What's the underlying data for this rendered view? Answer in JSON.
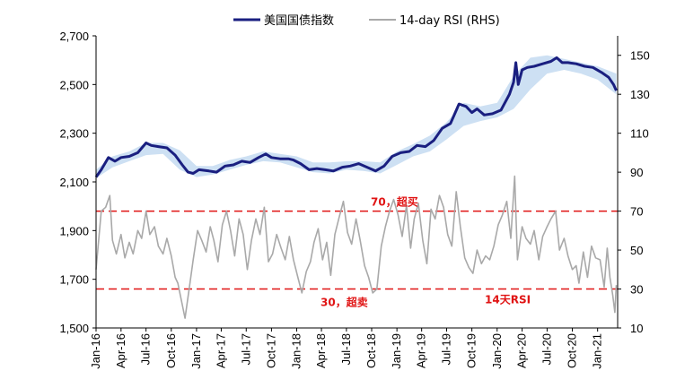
{
  "chart_data": {
    "type": "line",
    "title": "",
    "legend": {
      "position": "top-center"
    },
    "x_ticks": [
      "Jan-16",
      "Apr-16",
      "Jul-16",
      "Oct-16",
      "Jan-17",
      "Apr-17",
      "Jul-17",
      "Oct-17",
      "Jan-18",
      "Apr-18",
      "Jul-18",
      "Oct-18",
      "Jan-19",
      "Apr-19",
      "Jul-19",
      "Oct-19",
      "Jan-20",
      "Apr-20",
      "Jul-20",
      "Oct-20",
      "Jan-21"
    ],
    "y_left": {
      "ticks": [
        "1,500",
        "1,700",
        "1,900",
        "2,100",
        "2,300",
        "2,500",
        "2,700"
      ],
      "range": [
        1500,
        2700
      ]
    },
    "y_right": {
      "ticks": [
        "10",
        "30",
        "50",
        "70",
        "90",
        "110",
        "130",
        "150"
      ],
      "range": [
        10,
        160
      ]
    },
    "series": [
      {
        "name": "美国国债指数",
        "axis": "left",
        "color": "#1a1f80",
        "points": [
          [
            "2016-01-01",
            2120
          ],
          [
            "2016-01-20",
            2150
          ],
          [
            "2016-02-15",
            2200
          ],
          [
            "2016-03-10",
            2185
          ],
          [
            "2016-04-01",
            2200
          ],
          [
            "2016-05-01",
            2205
          ],
          [
            "2016-06-01",
            2220
          ],
          [
            "2016-07-01",
            2260
          ],
          [
            "2016-07-20",
            2250
          ],
          [
            "2016-08-15",
            2245
          ],
          [
            "2016-09-15",
            2240
          ],
          [
            "2016-10-15",
            2210
          ],
          [
            "2016-11-10",
            2170
          ],
          [
            "2016-12-01",
            2140
          ],
          [
            "2016-12-20",
            2135
          ],
          [
            "2017-01-10",
            2150
          ],
          [
            "2017-02-15",
            2145
          ],
          [
            "2017-03-15",
            2140
          ],
          [
            "2017-04-15",
            2165
          ],
          [
            "2017-05-15",
            2170
          ],
          [
            "2017-06-15",
            2185
          ],
          [
            "2017-07-15",
            2180
          ],
          [
            "2017-08-15",
            2200
          ],
          [
            "2017-09-10",
            2215
          ],
          [
            "2017-10-01",
            2200
          ],
          [
            "2017-11-01",
            2195
          ],
          [
            "2017-12-01",
            2195
          ],
          [
            "2017-12-20",
            2190
          ],
          [
            "2018-01-15",
            2175
          ],
          [
            "2018-02-15",
            2150
          ],
          [
            "2018-03-15",
            2155
          ],
          [
            "2018-04-15",
            2150
          ],
          [
            "2018-05-15",
            2145
          ],
          [
            "2018-06-15",
            2160
          ],
          [
            "2018-07-15",
            2165
          ],
          [
            "2018-08-15",
            2175
          ],
          [
            "2018-09-15",
            2160
          ],
          [
            "2018-10-15",
            2145
          ],
          [
            "2018-11-15",
            2165
          ],
          [
            "2018-12-15",
            2205
          ],
          [
            "2019-01-15",
            2220
          ],
          [
            "2019-02-15",
            2225
          ],
          [
            "2019-03-15",
            2250
          ],
          [
            "2019-04-15",
            2245
          ],
          [
            "2019-05-15",
            2270
          ],
          [
            "2019-06-15",
            2320
          ],
          [
            "2019-07-15",
            2340
          ],
          [
            "2019-08-15",
            2420
          ],
          [
            "2019-09-10",
            2410
          ],
          [
            "2019-10-01",
            2385
          ],
          [
            "2019-10-20",
            2400
          ],
          [
            "2019-11-15",
            2375
          ],
          [
            "2019-12-15",
            2380
          ],
          [
            "2020-01-15",
            2395
          ],
          [
            "2020-02-15",
            2460
          ],
          [
            "2020-03-01",
            2510
          ],
          [
            "2020-03-09",
            2590
          ],
          [
            "2020-03-18",
            2500
          ],
          [
            "2020-04-01",
            2560
          ],
          [
            "2020-04-20",
            2570
          ],
          [
            "2020-05-15",
            2575
          ],
          [
            "2020-06-15",
            2585
          ],
          [
            "2020-07-15",
            2595
          ],
          [
            "2020-08-05",
            2610
          ],
          [
            "2020-08-25",
            2590
          ],
          [
            "2020-09-15",
            2590
          ],
          [
            "2020-10-15",
            2585
          ],
          [
            "2020-11-15",
            2575
          ],
          [
            "2020-12-15",
            2570
          ],
          [
            "2021-01-15",
            2550
          ],
          [
            "2021-02-10",
            2530
          ],
          [
            "2021-02-28",
            2500
          ],
          [
            "2021-03-10",
            2475
          ]
        ]
      },
      {
        "name": "14-day RSI (RHS)",
        "axis": "right",
        "color": "#a9a9a9",
        "points": [
          [
            "2016-01-01",
            40
          ],
          [
            "2016-01-20",
            70
          ],
          [
            "2016-02-05",
            72
          ],
          [
            "2016-02-20",
            78
          ],
          [
            "2016-03-01",
            55
          ],
          [
            "2016-03-15",
            48
          ],
          [
            "2016-04-01",
            58
          ],
          [
            "2016-04-15",
            46
          ],
          [
            "2016-05-01",
            54
          ],
          [
            "2016-05-15",
            48
          ],
          [
            "2016-06-01",
            60
          ],
          [
            "2016-06-15",
            56
          ],
          [
            "2016-07-01",
            70
          ],
          [
            "2016-07-15",
            58
          ],
          [
            "2016-08-01",
            62
          ],
          [
            "2016-08-15",
            52
          ],
          [
            "2016-09-01",
            48
          ],
          [
            "2016-09-15",
            56
          ],
          [
            "2016-10-01",
            47
          ],
          [
            "2016-10-15",
            36
          ],
          [
            "2016-10-25",
            33
          ],
          [
            "2016-11-10",
            22
          ],
          [
            "2016-11-20",
            15
          ],
          [
            "2016-12-05",
            30
          ],
          [
            "2016-12-20",
            45
          ],
          [
            "2017-01-05",
            60
          ],
          [
            "2017-01-20",
            55
          ],
          [
            "2017-02-05",
            49
          ],
          [
            "2017-02-20",
            62
          ],
          [
            "2017-03-05",
            55
          ],
          [
            "2017-03-20",
            44
          ],
          [
            "2017-04-05",
            63
          ],
          [
            "2017-04-20",
            70
          ],
          [
            "2017-05-05",
            60
          ],
          [
            "2017-05-20",
            47
          ],
          [
            "2017-06-05",
            66
          ],
          [
            "2017-06-20",
            58
          ],
          [
            "2017-07-05",
            40
          ],
          [
            "2017-07-20",
            55
          ],
          [
            "2017-08-05",
            66
          ],
          [
            "2017-08-20",
            58
          ],
          [
            "2017-09-05",
            72
          ],
          [
            "2017-09-20",
            44
          ],
          [
            "2017-10-05",
            48
          ],
          [
            "2017-10-20",
            58
          ],
          [
            "2017-11-05",
            51
          ],
          [
            "2017-11-20",
            45
          ],
          [
            "2017-12-05",
            57
          ],
          [
            "2017-12-20",
            45
          ],
          [
            "2018-01-05",
            36
          ],
          [
            "2018-01-20",
            28
          ],
          [
            "2018-02-05",
            39
          ],
          [
            "2018-02-20",
            44
          ],
          [
            "2018-03-05",
            54
          ],
          [
            "2018-03-20",
            61
          ],
          [
            "2018-04-05",
            45
          ],
          [
            "2018-04-20",
            54
          ],
          [
            "2018-05-05",
            37
          ],
          [
            "2018-05-20",
            58
          ],
          [
            "2018-06-05",
            67
          ],
          [
            "2018-06-20",
            75
          ],
          [
            "2018-07-05",
            59
          ],
          [
            "2018-07-20",
            53
          ],
          [
            "2018-08-05",
            66
          ],
          [
            "2018-08-20",
            55
          ],
          [
            "2018-09-05",
            42
          ],
          [
            "2018-09-20",
            36
          ],
          [
            "2018-10-05",
            28
          ],
          [
            "2018-10-20",
            30
          ],
          [
            "2018-11-05",
            52
          ],
          [
            "2018-11-20",
            62
          ],
          [
            "2018-12-05",
            70
          ],
          [
            "2018-12-20",
            76
          ],
          [
            "2019-01-05",
            68
          ],
          [
            "2019-01-20",
            57
          ],
          [
            "2019-02-05",
            73
          ],
          [
            "2019-02-20",
            51
          ],
          [
            "2019-03-05",
            66
          ],
          [
            "2019-03-20",
            74
          ],
          [
            "2019-04-05",
            55
          ],
          [
            "2019-04-20",
            43
          ],
          [
            "2019-05-05",
            71
          ],
          [
            "2019-05-20",
            66
          ],
          [
            "2019-06-05",
            78
          ],
          [
            "2019-06-20",
            72
          ],
          [
            "2019-07-05",
            58
          ],
          [
            "2019-07-20",
            52
          ],
          [
            "2019-08-05",
            80
          ],
          [
            "2019-08-20",
            62
          ],
          [
            "2019-09-05",
            46
          ],
          [
            "2019-09-20",
            41
          ],
          [
            "2019-10-05",
            38
          ],
          [
            "2019-10-20",
            50
          ],
          [
            "2019-11-05",
            43
          ],
          [
            "2019-11-20",
            47
          ],
          [
            "2019-12-05",
            45
          ],
          [
            "2019-12-20",
            52
          ],
          [
            "2020-01-05",
            63
          ],
          [
            "2020-01-20",
            68
          ],
          [
            "2020-02-05",
            75
          ],
          [
            "2020-02-20",
            56
          ],
          [
            "2020-03-05",
            88
          ],
          [
            "2020-03-15",
            45
          ],
          [
            "2020-04-01",
            62
          ],
          [
            "2020-04-15",
            56
          ],
          [
            "2020-05-01",
            53
          ],
          [
            "2020-05-15",
            60
          ],
          [
            "2020-06-01",
            45
          ],
          [
            "2020-06-15",
            57
          ],
          [
            "2020-07-01",
            62
          ],
          [
            "2020-07-15",
            66
          ],
          [
            "2020-08-01",
            70
          ],
          [
            "2020-08-15",
            50
          ],
          [
            "2020-09-01",
            56
          ],
          [
            "2020-09-15",
            47
          ],
          [
            "2020-10-01",
            40
          ],
          [
            "2020-10-15",
            42
          ],
          [
            "2020-10-25",
            33
          ],
          [
            "2020-11-10",
            49
          ],
          [
            "2020-11-25",
            36
          ],
          [
            "2020-12-10",
            52
          ],
          [
            "2020-12-25",
            46
          ],
          [
            "2021-01-10",
            45
          ],
          [
            "2021-01-25",
            31
          ],
          [
            "2021-02-05",
            51
          ],
          [
            "2021-02-15",
            36
          ],
          [
            "2021-02-25",
            27
          ],
          [
            "2021-03-05",
            18
          ],
          [
            "2021-03-10",
            32
          ]
        ]
      }
    ],
    "band": {
      "axis": "left",
      "color": "#cde0f3",
      "lower": [
        [
          "2016-01-01",
          2115
        ],
        [
          "2016-03-01",
          2160
        ],
        [
          "2016-05-01",
          2185
        ],
        [
          "2016-07-01",
          2210
        ],
        [
          "2016-09-01",
          2215
        ],
        [
          "2016-11-01",
          2150
        ],
        [
          "2017-01-01",
          2120
        ],
        [
          "2017-03-01",
          2130
        ],
        [
          "2017-05-01",
          2150
        ],
        [
          "2017-07-01",
          2170
        ],
        [
          "2017-09-01",
          2185
        ],
        [
          "2017-11-01",
          2180
        ],
        [
          "2018-01-01",
          2160
        ],
        [
          "2018-03-01",
          2140
        ],
        [
          "2018-05-01",
          2135
        ],
        [
          "2018-07-01",
          2150
        ],
        [
          "2018-09-01",
          2145
        ],
        [
          "2018-11-01",
          2135
        ],
        [
          "2019-01-01",
          2170
        ],
        [
          "2019-03-01",
          2205
        ],
        [
          "2019-05-01",
          2225
        ],
        [
          "2019-07-01",
          2275
        ],
        [
          "2019-09-01",
          2330
        ],
        [
          "2019-11-01",
          2350
        ],
        [
          "2020-01-01",
          2365
        ],
        [
          "2020-03-01",
          2400
        ],
        [
          "2020-05-01",
          2480
        ],
        [
          "2020-07-01",
          2545
        ],
        [
          "2020-09-01",
          2560
        ],
        [
          "2020-11-01",
          2545
        ],
        [
          "2021-01-01",
          2520
        ],
        [
          "2021-03-10",
          2460
        ]
      ],
      "upper": [
        [
          "2016-01-01",
          2150
        ],
        [
          "2016-03-01",
          2205
        ],
        [
          "2016-05-01",
          2225
        ],
        [
          "2016-07-01",
          2260
        ],
        [
          "2016-09-01",
          2260
        ],
        [
          "2016-11-01",
          2230
        ],
        [
          "2017-01-01",
          2165
        ],
        [
          "2017-03-01",
          2165
        ],
        [
          "2017-05-01",
          2190
        ],
        [
          "2017-07-01",
          2205
        ],
        [
          "2017-09-01",
          2225
        ],
        [
          "2017-11-01",
          2215
        ],
        [
          "2018-01-01",
          2205
        ],
        [
          "2018-03-01",
          2180
        ],
        [
          "2018-05-01",
          2180
        ],
        [
          "2018-07-01",
          2185
        ],
        [
          "2018-09-01",
          2185
        ],
        [
          "2018-11-01",
          2180
        ],
        [
          "2019-01-01",
          2225
        ],
        [
          "2019-03-01",
          2255
        ],
        [
          "2019-05-01",
          2290
        ],
        [
          "2019-07-01",
          2345
        ],
        [
          "2019-09-01",
          2425
        ],
        [
          "2019-11-01",
          2410
        ],
        [
          "2020-01-01",
          2425
        ],
        [
          "2020-03-01",
          2535
        ],
        [
          "2020-05-01",
          2610
        ],
        [
          "2020-07-01",
          2620
        ],
        [
          "2020-09-01",
          2605
        ],
        [
          "2020-11-01",
          2590
        ],
        [
          "2021-01-01",
          2575
        ],
        [
          "2021-03-10",
          2545
        ]
      ]
    },
    "reference_lines": [
      {
        "axis": "right",
        "value": 70,
        "label": "70，超买",
        "color": "#e01414"
      },
      {
        "axis": "right",
        "value": 30,
        "label": "30，超卖",
        "color": "#e01414"
      }
    ],
    "annotations": [
      {
        "text": "14天RSI",
        "color": "#e01414"
      }
    ],
    "grid": false
  }
}
